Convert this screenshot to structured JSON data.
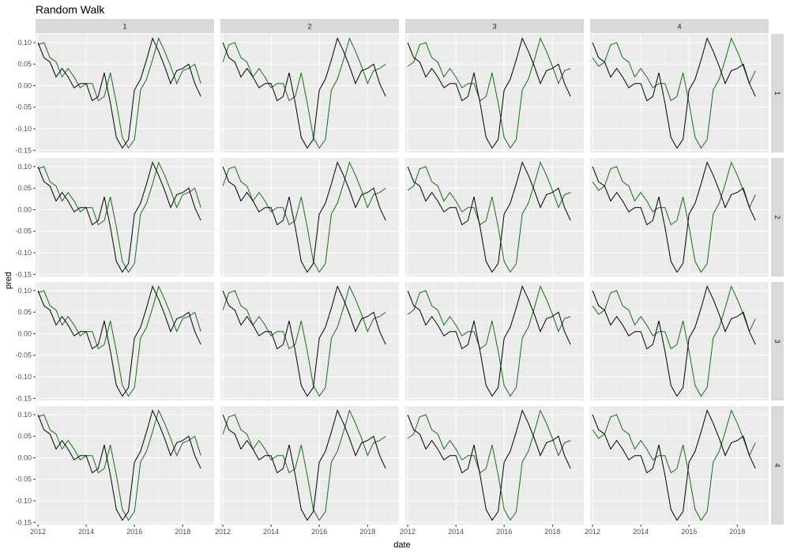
{
  "chart_data": {
    "type": "line",
    "title": "Random Walk",
    "xlabel": "date",
    "ylabel": "pred",
    "facet_cols": [
      "1",
      "2",
      "3",
      "4"
    ],
    "facet_rows": [
      "1",
      "2",
      "3",
      "4"
    ],
    "x_ticks": [
      "2012",
      "2014",
      "2016",
      "2018"
    ],
    "y_ticks": [
      "0.10",
      "0.05",
      "0.00",
      "-0.05",
      "-0.10",
      "-0.15"
    ],
    "xlim": [
      2011.9,
      2019.3
    ],
    "ylim": [
      -0.155,
      0.12
    ],
    "grid": true,
    "colors": {
      "actual": "#000000",
      "predicted": "#1a6b1a",
      "panel": "#ebebeb",
      "strip": "#d9d9d9",
      "gridline": "#ffffff"
    },
    "series": [
      {
        "x": [
          2012.0,
          2012.25,
          2012.5,
          2012.75,
          2013.0,
          2013.25,
          2013.5,
          2013.75,
          2014.0,
          2014.25,
          2014.5,
          2014.75,
          2015.0,
          2015.25,
          2015.5,
          2015.75,
          2016.0,
          2016.25,
          2016.5,
          2016.75,
          2017.0,
          2017.25,
          2017.5,
          2017.75,
          2018.0,
          2018.25,
          2018.5,
          2018.75,
          2019.0
        ],
        "values": [
          0.1,
          0.065,
          0.055,
          0.02,
          0.04,
          0.02,
          -0.005,
          0.005,
          0.005,
          -0.035,
          -0.025,
          0.03,
          -0.04,
          -0.12,
          -0.145,
          -0.125,
          -0.01,
          0.015,
          0.06,
          0.11,
          0.08,
          0.045,
          0.005,
          0.035,
          0.04,
          0.05,
          0.005,
          -0.025,
          null
        ]
      }
    ],
    "predicted_by_col": [
      {
        "x": [
          2012.0,
          2012.25,
          2012.5,
          2012.75,
          2013.0,
          2013.25,
          2013.5,
          2013.75,
          2014.0,
          2014.25,
          2014.5,
          2014.75,
          2015.0,
          2015.25,
          2015.5,
          2015.75,
          2016.0,
          2016.25,
          2016.5,
          2016.75,
          2017.0,
          2017.25,
          2017.5,
          2017.75,
          2018.0,
          2018.25,
          2018.5,
          2018.75,
          2019.0
        ],
        "values": [
          0.095,
          0.1,
          0.065,
          0.055,
          0.02,
          0.04,
          0.02,
          -0.005,
          0.005,
          0.005,
          -0.035,
          -0.025,
          0.03,
          -0.04,
          -0.12,
          -0.145,
          -0.125,
          -0.01,
          0.015,
          0.06,
          0.11,
          0.08,
          0.045,
          0.005,
          0.035,
          0.04,
          0.05,
          0.005,
          null
        ]
      },
      {
        "x": [
          2012.0,
          2012.25,
          2012.5,
          2012.75,
          2013.0,
          2013.25,
          2013.5,
          2013.75,
          2014.0,
          2014.25,
          2014.5,
          2014.75,
          2015.0,
          2015.25,
          2015.5,
          2015.75,
          2016.0,
          2016.25,
          2016.5,
          2016.75,
          2017.0,
          2017.25,
          2017.5,
          2017.75,
          2018.0,
          2018.25,
          2018.5,
          2018.75,
          2019.0
        ],
        "values": [
          0.055,
          0.095,
          0.1,
          0.065,
          0.055,
          0.02,
          0.04,
          0.02,
          -0.005,
          0.005,
          0.005,
          -0.035,
          -0.025,
          0.03,
          -0.04,
          -0.12,
          -0.145,
          -0.125,
          -0.01,
          0.015,
          0.06,
          0.11,
          0.08,
          0.045,
          0.005,
          0.035,
          0.04,
          0.05,
          null
        ]
      },
      {
        "x": [
          2012.0,
          2012.25,
          2012.5,
          2012.75,
          2013.0,
          2013.25,
          2013.5,
          2013.75,
          2014.0,
          2014.25,
          2014.5,
          2014.75,
          2015.0,
          2015.25,
          2015.5,
          2015.75,
          2016.0,
          2016.25,
          2016.5,
          2016.75,
          2017.0,
          2017.25,
          2017.5,
          2017.75,
          2018.0,
          2018.25,
          2018.5,
          2018.75,
          2019.0
        ],
        "values": [
          0.045,
          0.055,
          0.095,
          0.1,
          0.065,
          0.055,
          0.02,
          0.04,
          0.02,
          -0.005,
          0.005,
          0.005,
          -0.035,
          -0.025,
          0.03,
          -0.04,
          -0.12,
          -0.145,
          -0.125,
          -0.01,
          0.015,
          0.06,
          0.11,
          0.08,
          0.045,
          0.005,
          0.035,
          0.04,
          null
        ]
      },
      {
        "x": [
          2012.0,
          2012.25,
          2012.5,
          2012.75,
          2013.0,
          2013.25,
          2013.5,
          2013.75,
          2014.0,
          2014.25,
          2014.5,
          2014.75,
          2015.0,
          2015.25,
          2015.5,
          2015.75,
          2016.0,
          2016.25,
          2016.5,
          2016.75,
          2017.0,
          2017.25,
          2017.5,
          2017.75,
          2018.0,
          2018.25,
          2018.5,
          2018.75,
          2019.0
        ],
        "values": [
          0.065,
          0.045,
          0.055,
          0.095,
          0.1,
          0.065,
          0.055,
          0.02,
          0.04,
          0.02,
          -0.005,
          0.005,
          0.005,
          -0.035,
          -0.025,
          0.03,
          -0.04,
          -0.12,
          -0.145,
          -0.125,
          -0.01,
          0.015,
          0.06,
          0.11,
          0.08,
          0.045,
          0.005,
          0.035,
          null
        ]
      }
    ]
  }
}
